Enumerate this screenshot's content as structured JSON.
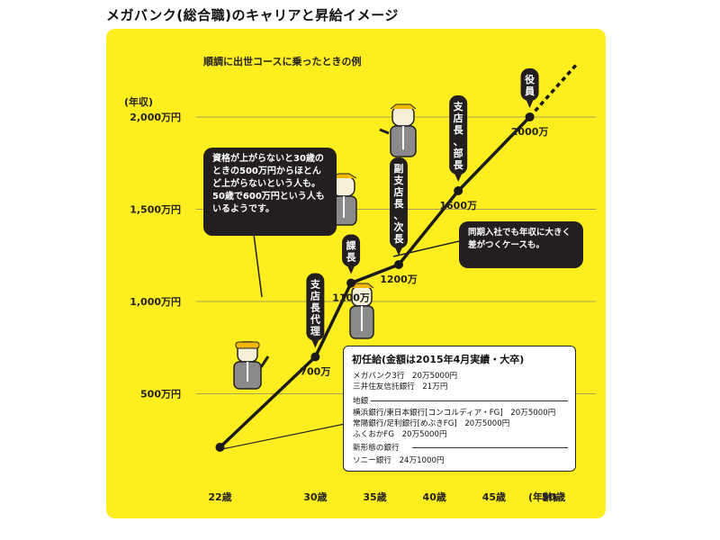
{
  "page_title": "メガバンク(総合職)のキャリアと昇給イメージ",
  "chart_data": {
    "type": "line",
    "title": "順調に出世コースに乗ったときの例",
    "ylabel": "(年収)",
    "xlabel": "(年齢)",
    "xlim": [
      20,
      54
    ],
    "ylim": [
      0,
      2000
    ],
    "y_ticks": [
      {
        "value": 500,
        "label": "500万円"
      },
      {
        "value": 1000,
        "label": "1,000万円"
      },
      {
        "value": 1500,
        "label": "1,500万円"
      },
      {
        "value": 2000,
        "label": "2,000万円"
      }
    ],
    "x_ticks": [
      {
        "value": 22,
        "label": "22歳"
      },
      {
        "value": 30,
        "label": "30歳"
      },
      {
        "value": 35,
        "label": "35歳"
      },
      {
        "value": 40,
        "label": "40歳"
      },
      {
        "value": 45,
        "label": "45歳"
      },
      {
        "value": 50,
        "label": "50歳"
      }
    ],
    "x_unit_label": "(年齢)",
    "points": [
      {
        "x": 22,
        "y": 210,
        "value_label": "",
        "role": ""
      },
      {
        "x": 30,
        "y": 700,
        "value_label": "700万",
        "role": "支店長代理"
      },
      {
        "x": 33,
        "y": 1100,
        "value_label": "1100万",
        "role": "課長"
      },
      {
        "x": 37,
        "y": 1200,
        "value_label": "1200万",
        "role": "副支店長、次長"
      },
      {
        "x": 42,
        "y": 1600,
        "value_label": "1600万",
        "role": "支店長、部長"
      },
      {
        "x": 48,
        "y": 2000,
        "value_label": "2000万",
        "role": "役員"
      }
    ],
    "extension_to": {
      "x": 52,
      "y": 2290
    },
    "grid": true
  },
  "notes": {
    "stagnation": "資格が上がらないと30歳のときの500万円からほとんど上がらないという人も。50歳で600万円という人もいるようです。",
    "gap": "同期入社でも年収に大きく差がつくケースも。"
  },
  "starting_salary": {
    "heading": "初任給(金額は2015年4月実績・大卒)",
    "megabank_lines": [
      "メガバンク3行　20万5000円",
      "三井住友信託銀行　21万円"
    ],
    "regional_heading": "地銀",
    "regional_lines": [
      "横浜銀行/東日本銀行[コンコルディア・FG]　20万5000円",
      "常陽銀行/足利銀行[めぶきFG]　20万5000円",
      "ふくおかFG　20万5000円"
    ],
    "new_type_heading": "新形態の銀行",
    "new_type_lines": [
      "ソニー銀行　24万1000円"
    ]
  }
}
